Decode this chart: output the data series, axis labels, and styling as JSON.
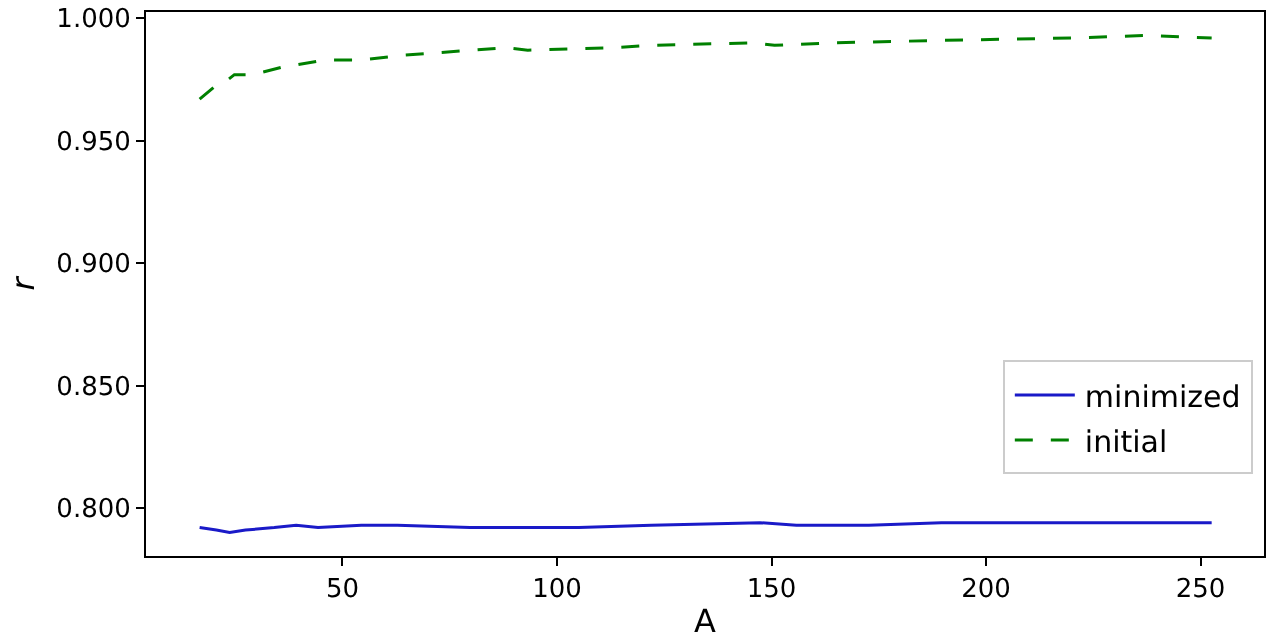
{
  "chart_data": {
    "type": "line",
    "xlabel": "A",
    "ylabel": "r",
    "xlim": [
      4.2,
      264.8
    ],
    "xticks": [
      50,
      100,
      150,
      200,
      250
    ],
    "ylim": [
      0.7804,
      1.0026
    ],
    "yticks": [
      {
        "value": 0.8,
        "label": "0.800"
      },
      {
        "value": 0.85,
        "label": "0.850"
      },
      {
        "value": 0.9,
        "label": "0.900"
      },
      {
        "value": 0.95,
        "label": "0.950"
      },
      {
        "value": 1.0,
        "label": "1.000"
      }
    ],
    "grid": false,
    "legend": "bottom right",
    "series": [
      {
        "name": "minimized",
        "color": "#1a1ac8",
        "line_style": "solid",
        "x": [
          16.7,
          20.6,
          23.7,
          27.4,
          34.1,
          39.2,
          44.3,
          54.4,
          62.8,
          79.7,
          96.6,
          105.1,
          122,
          147.3,
          155.8,
          172.7,
          189.6,
          209.9,
          231.8,
          252.6
        ],
        "values": [
          0.792,
          0.791,
          0.79,
          0.791,
          0.792,
          0.793,
          0.792,
          0.793,
          0.793,
          0.792,
          0.792,
          0.792,
          0.793,
          0.794,
          0.793,
          0.793,
          0.794,
          0.794,
          0.794,
          0.794
        ]
      },
      {
        "name": "initial",
        "color": "#008000",
        "line_style": "dashed",
        "x": [
          16.7,
          20.1,
          22.6,
          24.8,
          29.0,
          35.8,
          45.9,
          54.4,
          64.5,
          88.2,
          93.2,
          113.5,
          122,
          145.6,
          150.7,
          164.2,
          189.6,
          220,
          236.9,
          252.6
        ],
        "values": [
          0.967,
          0.972,
          0.974,
          0.977,
          0.977,
          0.98,
          0.983,
          0.983,
          0.985,
          0.988,
          0.987,
          0.988,
          0.989,
          0.99,
          0.989,
          0.99,
          0.991,
          0.992,
          0.993,
          0.992
        ]
      }
    ]
  }
}
